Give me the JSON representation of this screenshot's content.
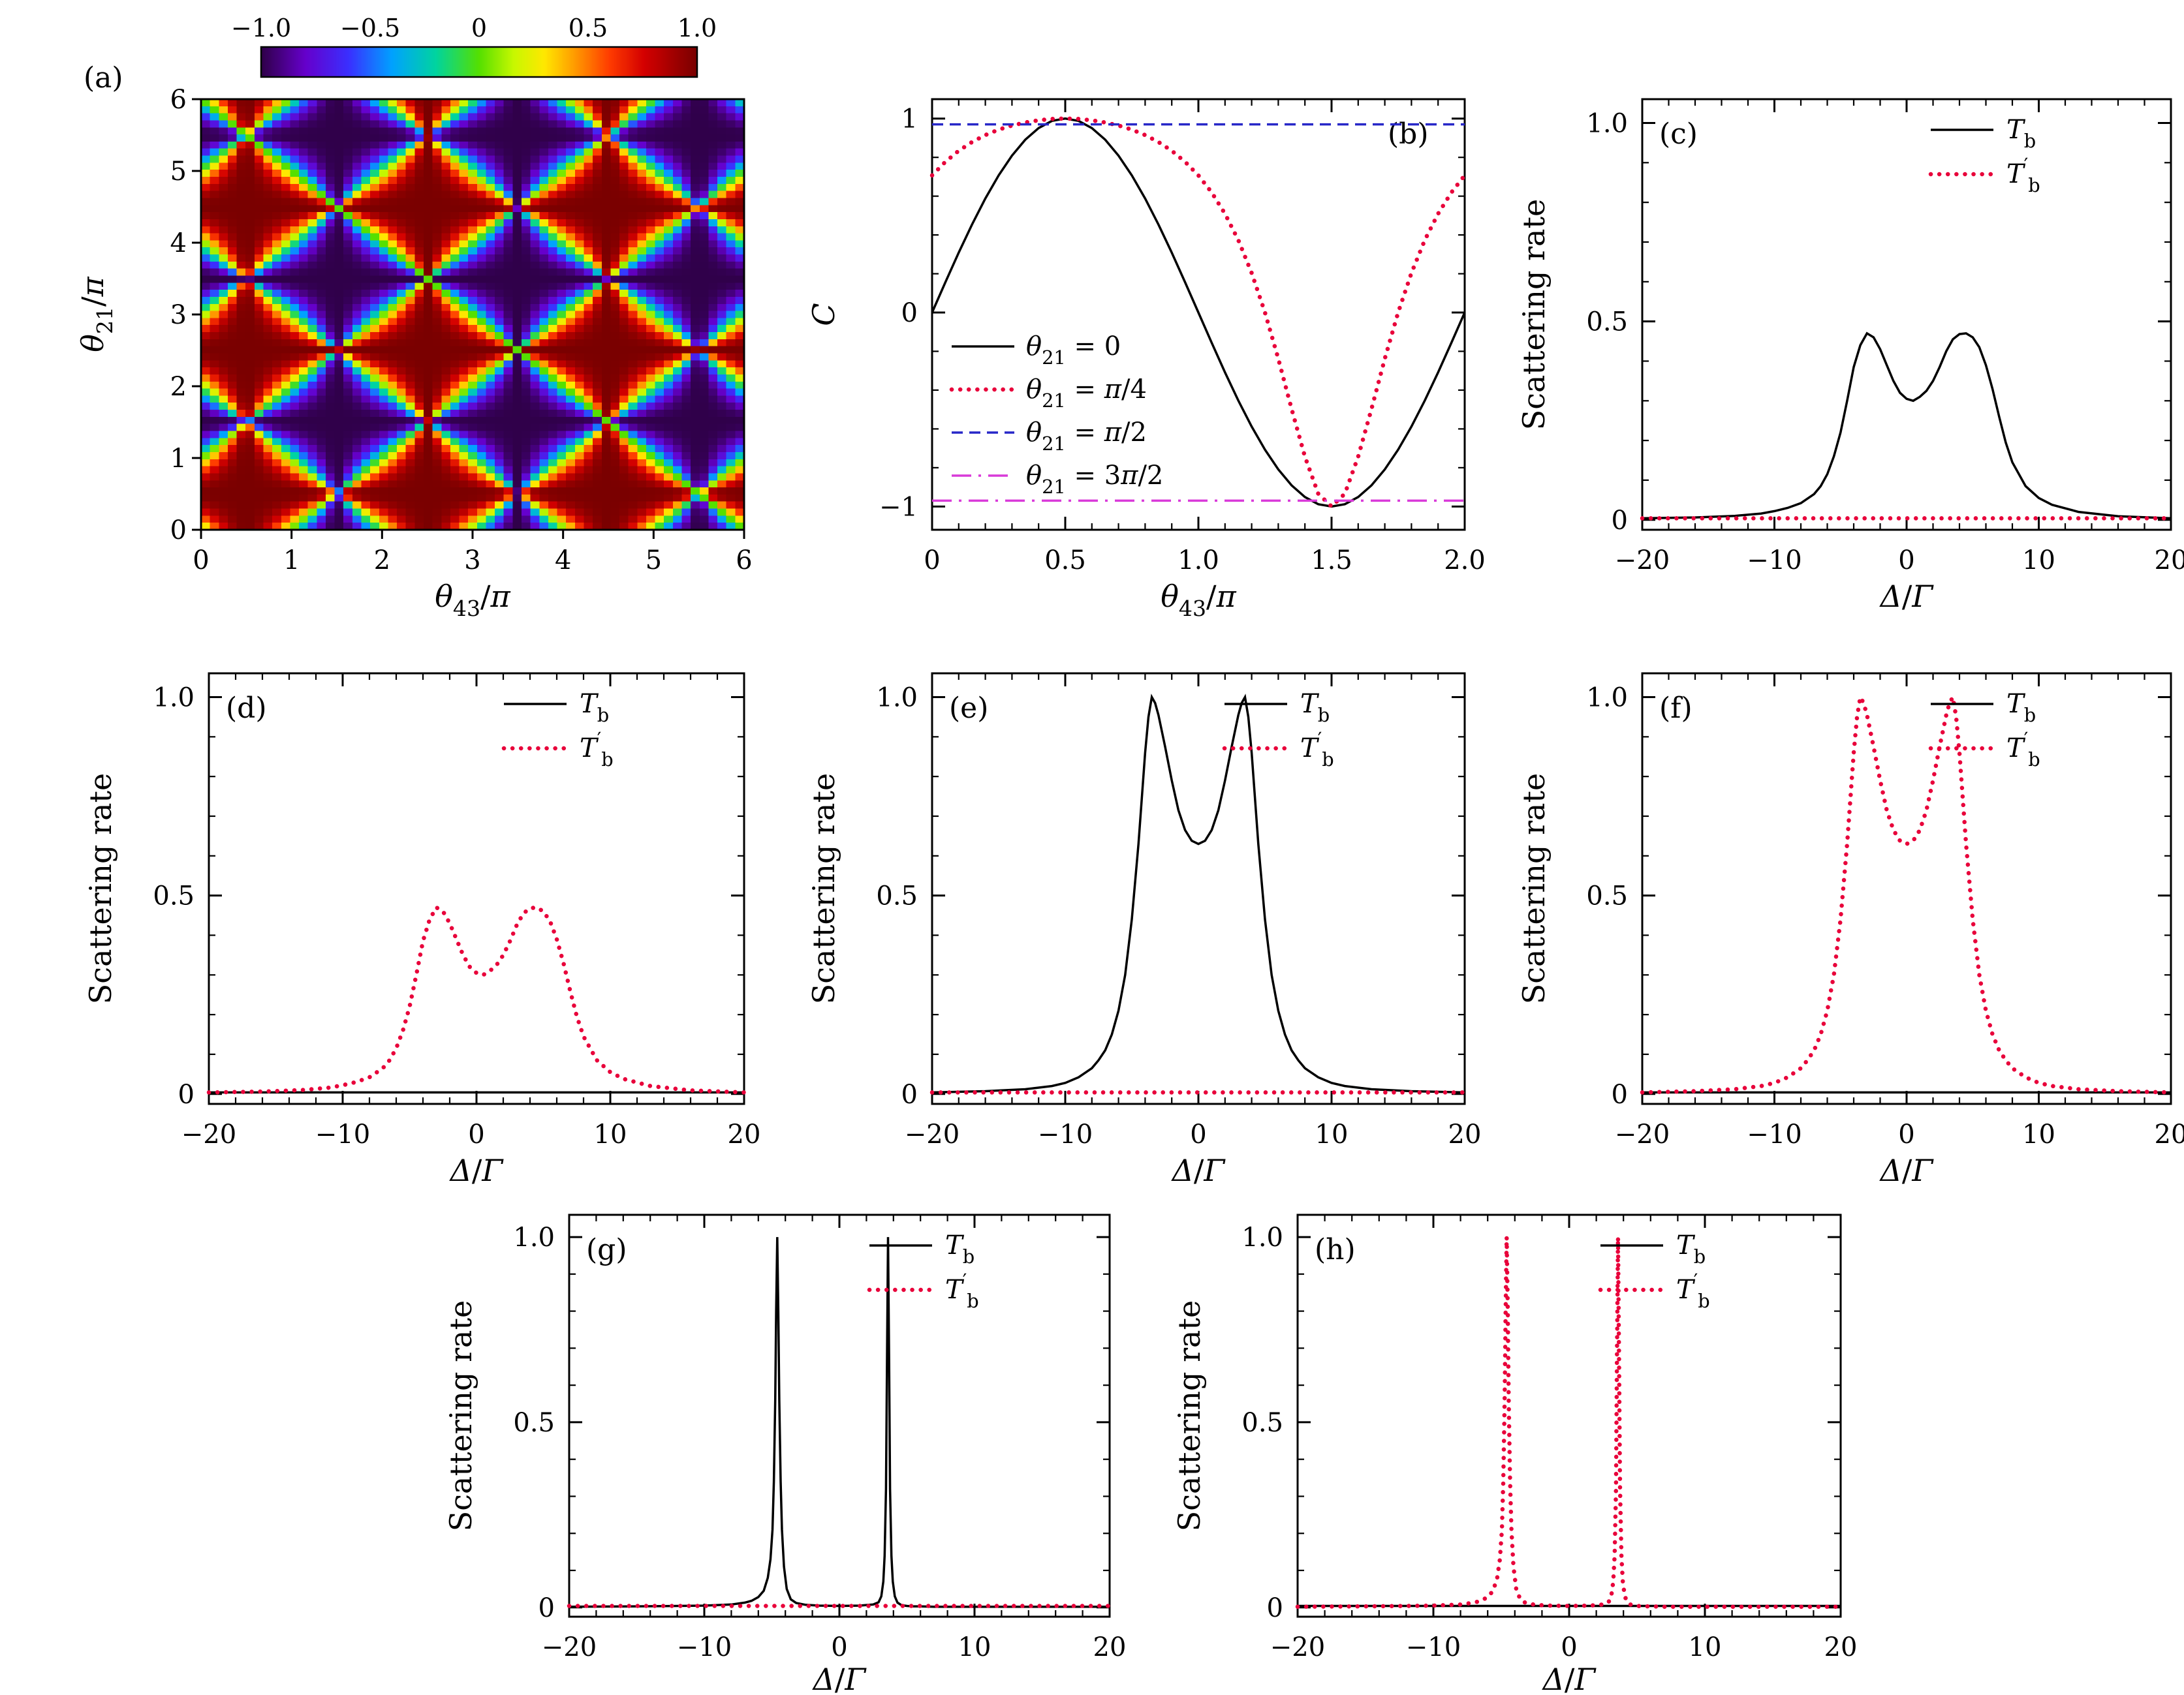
{
  "chart_data": {
    "panels": [
      {
        "id": "a",
        "label": "(a)",
        "type": "heatmap",
        "xlabel": "θ_{43}/π",
        "ylabel": "θ_{21}/π",
        "x_range": [
          0,
          6
        ],
        "y_range": [
          0,
          6
        ],
        "xticks": [
          0,
          1,
          2,
          3,
          4,
          5,
          6
        ],
        "xtick_labels": [
          "0",
          "1",
          "2",
          "3",
          "4",
          "5",
          "6"
        ],
        "yticks": [
          0,
          1,
          2,
          3,
          4,
          5,
          6
        ],
        "ytick_labels": [
          "0",
          "1",
          "2",
          "3",
          "4",
          "5",
          "6"
        ],
        "heatmap": {
          "grid_n": 61,
          "value_range": [
            -1,
            1
          ],
          "formula": "C = (sin(πx) + sin(πy)) / (1 + sin(πx)·sin(πy))",
          "colormap": [
            {
              "t": 0,
              "c": "#30004a"
            },
            {
              "t": 0.1,
              "c": "#6600cc"
            },
            {
              "t": 0.2,
              "c": "#3a30ff"
            },
            {
              "t": 0.3,
              "c": "#00a2ff"
            },
            {
              "t": 0.4,
              "c": "#00d4a0"
            },
            {
              "t": 0.5,
              "c": "#55e000"
            },
            {
              "t": 0.58,
              "c": "#c8f800"
            },
            {
              "t": 0.65,
              "c": "#ffe800"
            },
            {
              "t": 0.72,
              "c": "#ff9b00"
            },
            {
              "t": 0.8,
              "c": "#ff3c00"
            },
            {
              "t": 0.88,
              "c": "#d40000"
            },
            {
              "t": 1,
              "c": "#7a0000"
            }
          ]
        },
        "colorbar": {
          "tick_values": [
            -1,
            -0.5,
            0,
            0.5,
            1
          ],
          "tick_labels": [
            "−1.0",
            "−0.5",
            "0",
            "0.5",
            "1.0"
          ]
        }
      },
      {
        "id": "b",
        "label": "(b)",
        "type": "line",
        "xlabel": "θ_{43}/π",
        "ylabel": "C",
        "x_range": [
          0,
          2
        ],
        "y_range": [
          -1.12,
          1.1
        ],
        "xticks": [
          0,
          0.5,
          1,
          1.5,
          2
        ],
        "xtick_labels": [
          "0",
          "0.5",
          "1.0",
          "1.5",
          "2.0"
        ],
        "yticks": [
          -1,
          0,
          1
        ],
        "ytick_labels": [
          "−1",
          "0",
          "1"
        ],
        "legend_pos": "left",
        "series": [
          {
            "key": "t0",
            "label": "θ_{21} = 0",
            "style": "solid",
            "color": "#000000",
            "x_ref": "b_x",
            "y_ref": "b_sin"
          },
          {
            "key": "t1",
            "label": "θ_{21} = π/4",
            "style": "dotted",
            "color": "#e8003a",
            "x_ref": "b_x",
            "y_ref": "b_quarter"
          },
          {
            "key": "t2",
            "label": "θ_{21} = π/2",
            "style": "dashed",
            "color": "#2727c8",
            "y_const": 0.97
          },
          {
            "key": "t3",
            "label": "θ_{21} = 3π/2",
            "style": "dashdot",
            "color": "#d93ad9",
            "y_const": -0.97
          }
        ]
      },
      {
        "id": "c",
        "label": "(c)",
        "type": "line",
        "xlabel": "Δ/Γ",
        "ylabel": "Scattering rate",
        "ylabel_math": false,
        "x_range": [
          -20,
          20
        ],
        "y_range": [
          -0.025,
          1.06
        ],
        "xticks": [
          -20,
          -10,
          0,
          10,
          20
        ],
        "xtick_labels": [
          "−20",
          "−10",
          "0",
          "10",
          "20"
        ],
        "yticks": [
          0,
          0.5,
          1
        ],
        "ytick_labels": [
          "0",
          "0.5",
          "1.0"
        ],
        "legend_pos": "tr",
        "series": [
          {
            "key": "Tb",
            "label": "T_{b}",
            "style": "solid",
            "color": "#000000",
            "curve_ref": "double_peak_small"
          },
          {
            "key": "Tbp",
            "label": "T^{′}_{b}",
            "style": "dotted",
            "color": "#e8003a",
            "curve_ref": "flat_low"
          }
        ]
      },
      {
        "id": "d",
        "label": "(d)",
        "type": "line",
        "xlabel": "Δ/Γ",
        "ylabel": "Scattering rate",
        "ylabel_math": false,
        "x_range": [
          -20,
          20
        ],
        "y_range": [
          -0.025,
          1.06
        ],
        "xticks": [
          -20,
          -10,
          0,
          10,
          20
        ],
        "xtick_labels": [
          "−20",
          "−10",
          "0",
          "10",
          "20"
        ],
        "yticks": [
          0,
          0.5,
          1
        ],
        "ytick_labels": [
          "0",
          "0.5",
          "1.0"
        ],
        "legend_pos": "tr",
        "series": [
          {
            "key": "Tb",
            "label": "T_{b}",
            "style": "solid",
            "color": "#000000",
            "curve_ref": "flat_low"
          },
          {
            "key": "Tbp",
            "label": "T^{′}_{b}",
            "style": "dotted",
            "color": "#e8003a",
            "curve_ref": "double_peak_small"
          }
        ]
      },
      {
        "id": "e",
        "label": "(e)",
        "type": "line",
        "xlabel": "Δ/Γ",
        "ylabel": "Scattering rate",
        "ylabel_math": false,
        "x_range": [
          -20,
          20
        ],
        "y_range": [
          -0.025,
          1.06
        ],
        "xticks": [
          -20,
          -10,
          0,
          10,
          20
        ],
        "xtick_labels": [
          "−20",
          "−10",
          "0",
          "10",
          "20"
        ],
        "yticks": [
          0,
          0.5,
          1
        ],
        "ytick_labels": [
          "0",
          "0.5",
          "1.0"
        ],
        "legend_pos": "tr",
        "series": [
          {
            "key": "Tb",
            "label": "T_{b}",
            "style": "solid",
            "color": "#000000",
            "curve_ref": "double_peak_big"
          },
          {
            "key": "Tbp",
            "label": "T^{′}_{b}",
            "style": "dotted",
            "color": "#e8003a",
            "curve_ref": "flat_low"
          }
        ]
      },
      {
        "id": "f",
        "label": "(f)",
        "type": "line",
        "xlabel": "Δ/Γ",
        "ylabel": "Scattering rate",
        "ylabel_math": false,
        "x_range": [
          -20,
          20
        ],
        "y_range": [
          -0.025,
          1.06
        ],
        "xticks": [
          -20,
          -10,
          0,
          10,
          20
        ],
        "xtick_labels": [
          "−20",
          "−10",
          "0",
          "10",
          "20"
        ],
        "yticks": [
          0,
          0.5,
          1
        ],
        "ytick_labels": [
          "0",
          "0.5",
          "1.0"
        ],
        "legend_pos": "tr",
        "series": [
          {
            "key": "Tb",
            "label": "T_{b}",
            "style": "solid",
            "color": "#000000",
            "curve_ref": "flat_low"
          },
          {
            "key": "Tbp",
            "label": "T^{′}_{b}",
            "style": "dotted",
            "color": "#e8003a",
            "curve_ref": "double_peak_big"
          }
        ]
      },
      {
        "id": "g",
        "label": "(g)",
        "type": "line",
        "xlabel": "Δ/Γ",
        "ylabel": "Scattering rate",
        "ylabel_math": false,
        "x_range": [
          -20,
          20
        ],
        "y_range": [
          -0.025,
          1.06
        ],
        "xticks": [
          -20,
          -10,
          0,
          10,
          20
        ],
        "xtick_labels": [
          "−20",
          "−10",
          "0",
          "10",
          "20"
        ],
        "yticks": [
          0,
          0.5,
          1
        ],
        "ytick_labels": [
          "0",
          "0.5",
          "1.0"
        ],
        "legend_pos": "tr",
        "series": [
          {
            "key": "Tb",
            "label": "T_{b}",
            "style": "solid",
            "color": "#000000",
            "curve_ref": "narrow_peaks"
          },
          {
            "key": "Tbp",
            "label": "T^{′}_{b}",
            "style": "dotted",
            "color": "#e8003a",
            "curve_ref": "flat_low"
          }
        ]
      },
      {
        "id": "h",
        "label": "(h)",
        "type": "line",
        "xlabel": "Δ/Γ",
        "ylabel": "Scattering rate",
        "ylabel_math": false,
        "x_range": [
          -20,
          20
        ],
        "y_range": [
          -0.025,
          1.06
        ],
        "xticks": [
          -20,
          -10,
          0,
          10,
          20
        ],
        "xtick_labels": [
          "−20",
          "−10",
          "0",
          "10",
          "20"
        ],
        "yticks": [
          0,
          0.5,
          1
        ],
        "ytick_labels": [
          "0",
          "0.5",
          "1.0"
        ],
        "legend_pos": "tr",
        "series": [
          {
            "key": "Tb",
            "label": "T_{b}",
            "style": "solid",
            "color": "#000000",
            "curve_ref": "flat_low"
          },
          {
            "key": "Tbp",
            "label": "T^{′}_{b}",
            "style": "dotted",
            "color": "#e8003a",
            "curve_ref": "narrow_peaks"
          }
        ]
      }
    ],
    "shared_arrays": {
      "b_x": [
        0,
        0.05,
        0.1,
        0.15,
        0.2,
        0.25,
        0.3,
        0.35,
        0.4,
        0.45,
        0.5,
        0.55,
        0.6,
        0.65,
        0.7,
        0.75,
        0.8,
        0.85,
        0.9,
        0.95,
        1,
        1.05,
        1.1,
        1.15,
        1.2,
        1.25,
        1.3,
        1.35,
        1.4,
        1.45,
        1.5,
        1.55,
        1.6,
        1.65,
        1.7,
        1.75,
        1.8,
        1.85,
        1.9,
        1.95,
        2
      ],
      "b_sin": [
        0,
        0.156,
        0.309,
        0.454,
        0.588,
        0.707,
        0.809,
        0.891,
        0.951,
        0.988,
        1,
        0.988,
        0.951,
        0.891,
        0.809,
        0.707,
        0.588,
        0.454,
        0.309,
        0.156,
        0,
        -0.156,
        -0.309,
        -0.454,
        -0.588,
        -0.707,
        -0.809,
        -0.891,
        -0.951,
        -0.988,
        -1,
        -0.988,
        -0.951,
        -0.891,
        -0.809,
        -0.707,
        -0.588,
        -0.454,
        -0.309,
        -0.156,
        0
      ],
      "b_quarter": [
        0.707,
        0.777,
        0.834,
        0.879,
        0.915,
        0.943,
        0.964,
        0.98,
        0.991,
        0.998,
        1,
        0.998,
        0.991,
        0.98,
        0.964,
        0.943,
        0.915,
        0.879,
        0.834,
        0.777,
        0.707,
        0.619,
        0.509,
        0.373,
        0.204,
        0,
        -0.238,
        -0.497,
        -0.743,
        -0.934,
        -1,
        -0.934,
        -0.743,
        -0.497,
        -0.238,
        0,
        0.204,
        0.373,
        0.509,
        0.619,
        0.707
      ]
    },
    "shared_curves": {
      "double_peak_small": {
        "x": [
          -20,
          -16,
          -13,
          -11,
          -10,
          -9,
          -8,
          -7,
          -6.5,
          -6,
          -5.5,
          -5,
          -4.5,
          -4,
          -3.5,
          -3,
          -2.5,
          -2,
          -1.5,
          -1,
          -0.5,
          0,
          0.5,
          1,
          1.5,
          2,
          2.5,
          3,
          3.5,
          4,
          4.5,
          5,
          5.5,
          6,
          6.5,
          7,
          7.5,
          8,
          9,
          10,
          11,
          13,
          16,
          20
        ],
        "y": [
          0.004,
          0.006,
          0.01,
          0.016,
          0.022,
          0.03,
          0.042,
          0.065,
          0.085,
          0.115,
          0.16,
          0.22,
          0.3,
          0.385,
          0.44,
          0.47,
          0.46,
          0.43,
          0.39,
          0.35,
          0.32,
          0.305,
          0.3,
          0.31,
          0.325,
          0.35,
          0.385,
          0.425,
          0.455,
          0.468,
          0.47,
          0.46,
          0.435,
          0.39,
          0.33,
          0.26,
          0.195,
          0.145,
          0.085,
          0.055,
          0.038,
          0.02,
          0.009,
          0.004
        ]
      },
      "double_peak_big": {
        "x": [
          -20,
          -16,
          -13,
          -11,
          -10,
          -9,
          -8,
          -7.5,
          -7,
          -6.5,
          -6,
          -5.5,
          -5,
          -4.5,
          -4,
          -3.75,
          -3.5,
          -3.25,
          -3,
          -2.5,
          -2,
          -1.5,
          -1,
          -0.5,
          0,
          0.5,
          1,
          1.5,
          2,
          2.5,
          3,
          3.25,
          3.5,
          3.75,
          4,
          4.5,
          5,
          5.5,
          6,
          6.5,
          7,
          7.5,
          8,
          9,
          10,
          11,
          13,
          16,
          20
        ],
        "y": [
          0.004,
          0.007,
          0.012,
          0.02,
          0.028,
          0.042,
          0.065,
          0.085,
          0.11,
          0.15,
          0.21,
          0.3,
          0.44,
          0.63,
          0.86,
          0.95,
          1.0,
          0.985,
          0.955,
          0.875,
          0.79,
          0.715,
          0.665,
          0.638,
          0.63,
          0.638,
          0.665,
          0.715,
          0.79,
          0.875,
          0.955,
          0.985,
          1.0,
          0.95,
          0.86,
          0.63,
          0.44,
          0.3,
          0.21,
          0.15,
          0.11,
          0.085,
          0.065,
          0.042,
          0.028,
          0.02,
          0.012,
          0.007,
          0.004
        ]
      },
      "narrow_peaks": {
        "x": [
          -20,
          -15,
          -12,
          -10,
          -8,
          -7,
          -6.5,
          -6,
          -5.6,
          -5.3,
          -5.1,
          -4.95,
          -4.85,
          -4.75,
          -4.68,
          -4.6,
          -4.52,
          -4.45,
          -4.35,
          -4.25,
          -4.1,
          -3.9,
          -3.6,
          -3.2,
          -2.5,
          -1.5,
          0,
          1.5,
          2.5,
          2.9,
          3.1,
          3.25,
          3.35,
          3.45,
          3.52,
          3.6,
          3.68,
          3.75,
          3.85,
          3.95,
          4.1,
          4.3,
          4.6,
          5,
          5.5,
          6,
          7,
          8,
          10,
          12,
          15,
          20
        ],
        "y": [
          0.002,
          0.003,
          0.004,
          0.005,
          0.008,
          0.013,
          0.018,
          0.028,
          0.045,
          0.08,
          0.13,
          0.21,
          0.34,
          0.56,
          0.8,
          1.0,
          0.8,
          0.56,
          0.34,
          0.21,
          0.11,
          0.05,
          0.022,
          0.012,
          0.007,
          0.005,
          0.004,
          0.005,
          0.008,
          0.014,
          0.03,
          0.07,
          0.14,
          0.32,
          0.66,
          1.0,
          0.66,
          0.32,
          0.14,
          0.07,
          0.03,
          0.013,
          0.006,
          0.004,
          0.003,
          0.003,
          0.002,
          0.002,
          0.002,
          0.002,
          0.002,
          0.002
        ]
      },
      "flat_low": {
        "x": [
          -20,
          20
        ],
        "y": [
          0.004,
          0.004
        ]
      }
    }
  },
  "style_colors": {
    "axis": "#000000",
    "series_black": "#000000",
    "series_red": "#e8003a",
    "series_blue": "#2727c8",
    "series_magenta": "#d93ad9"
  }
}
